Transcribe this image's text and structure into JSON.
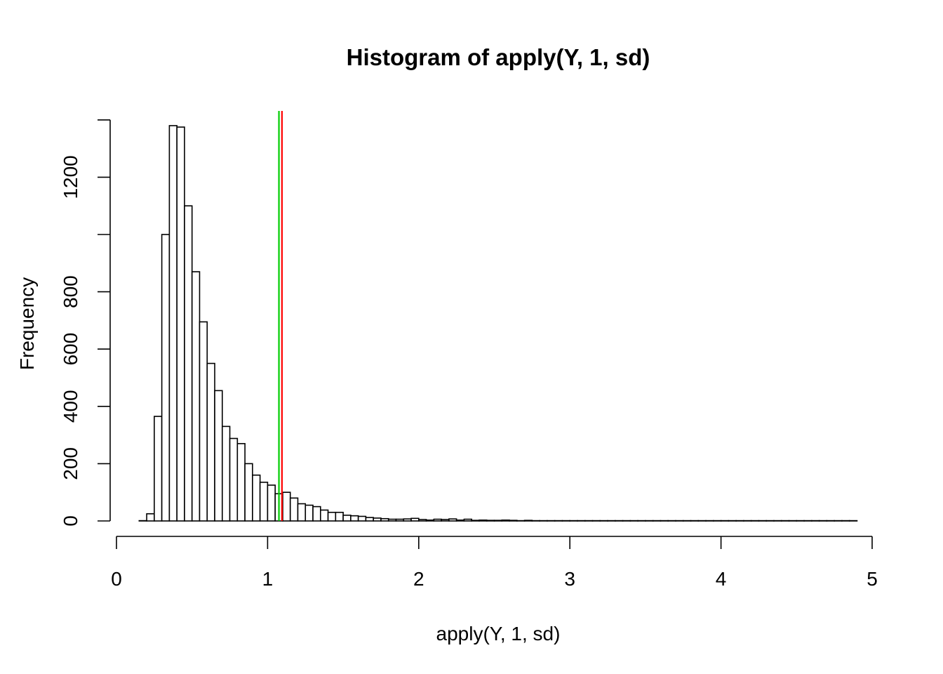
{
  "chart_data": {
    "type": "bar",
    "title": "Histogram of apply(Y, 1, sd)",
    "xlabel": "apply(Y, 1, sd)",
    "ylabel": "Frequency",
    "xlim": [
      0,
      5
    ],
    "ylim": [
      0,
      1400
    ],
    "xticks": [
      "0",
      "1",
      "2",
      "3",
      "4",
      "5"
    ],
    "yticks": [
      "0",
      "200",
      "400",
      "600",
      "800",
      "1200"
    ],
    "bin_start": 0.15,
    "bin_width": 0.05,
    "values": [
      1,
      25,
      365,
      1000,
      1380,
      1375,
      1100,
      870,
      695,
      550,
      455,
      330,
      288,
      270,
      200,
      160,
      135,
      125,
      95,
      100,
      80,
      60,
      55,
      50,
      38,
      30,
      30,
      20,
      18,
      16,
      12,
      10,
      8,
      6,
      6,
      7,
      9,
      5,
      3,
      6,
      5,
      7,
      3,
      6,
      2,
      3,
      2,
      2,
      3,
      2,
      1,
      2,
      1,
      1,
      1,
      1,
      1,
      1,
      1,
      1,
      1,
      1,
      1,
      1,
      1,
      1,
      1,
      1,
      1,
      1,
      1,
      1,
      1,
      1,
      1,
      1,
      1,
      1,
      1,
      1,
      1,
      1,
      1,
      1,
      1,
      1,
      1,
      1,
      1,
      1,
      1,
      1,
      1,
      1,
      1
    ],
    "vlines": [
      {
        "x": 1.075,
        "color": "#00cc00"
      },
      {
        "x": 1.095,
        "color": "#ff0000"
      }
    ],
    "grid": false,
    "bar_fill": "#ffffff",
    "bar_stroke": "#000000"
  }
}
